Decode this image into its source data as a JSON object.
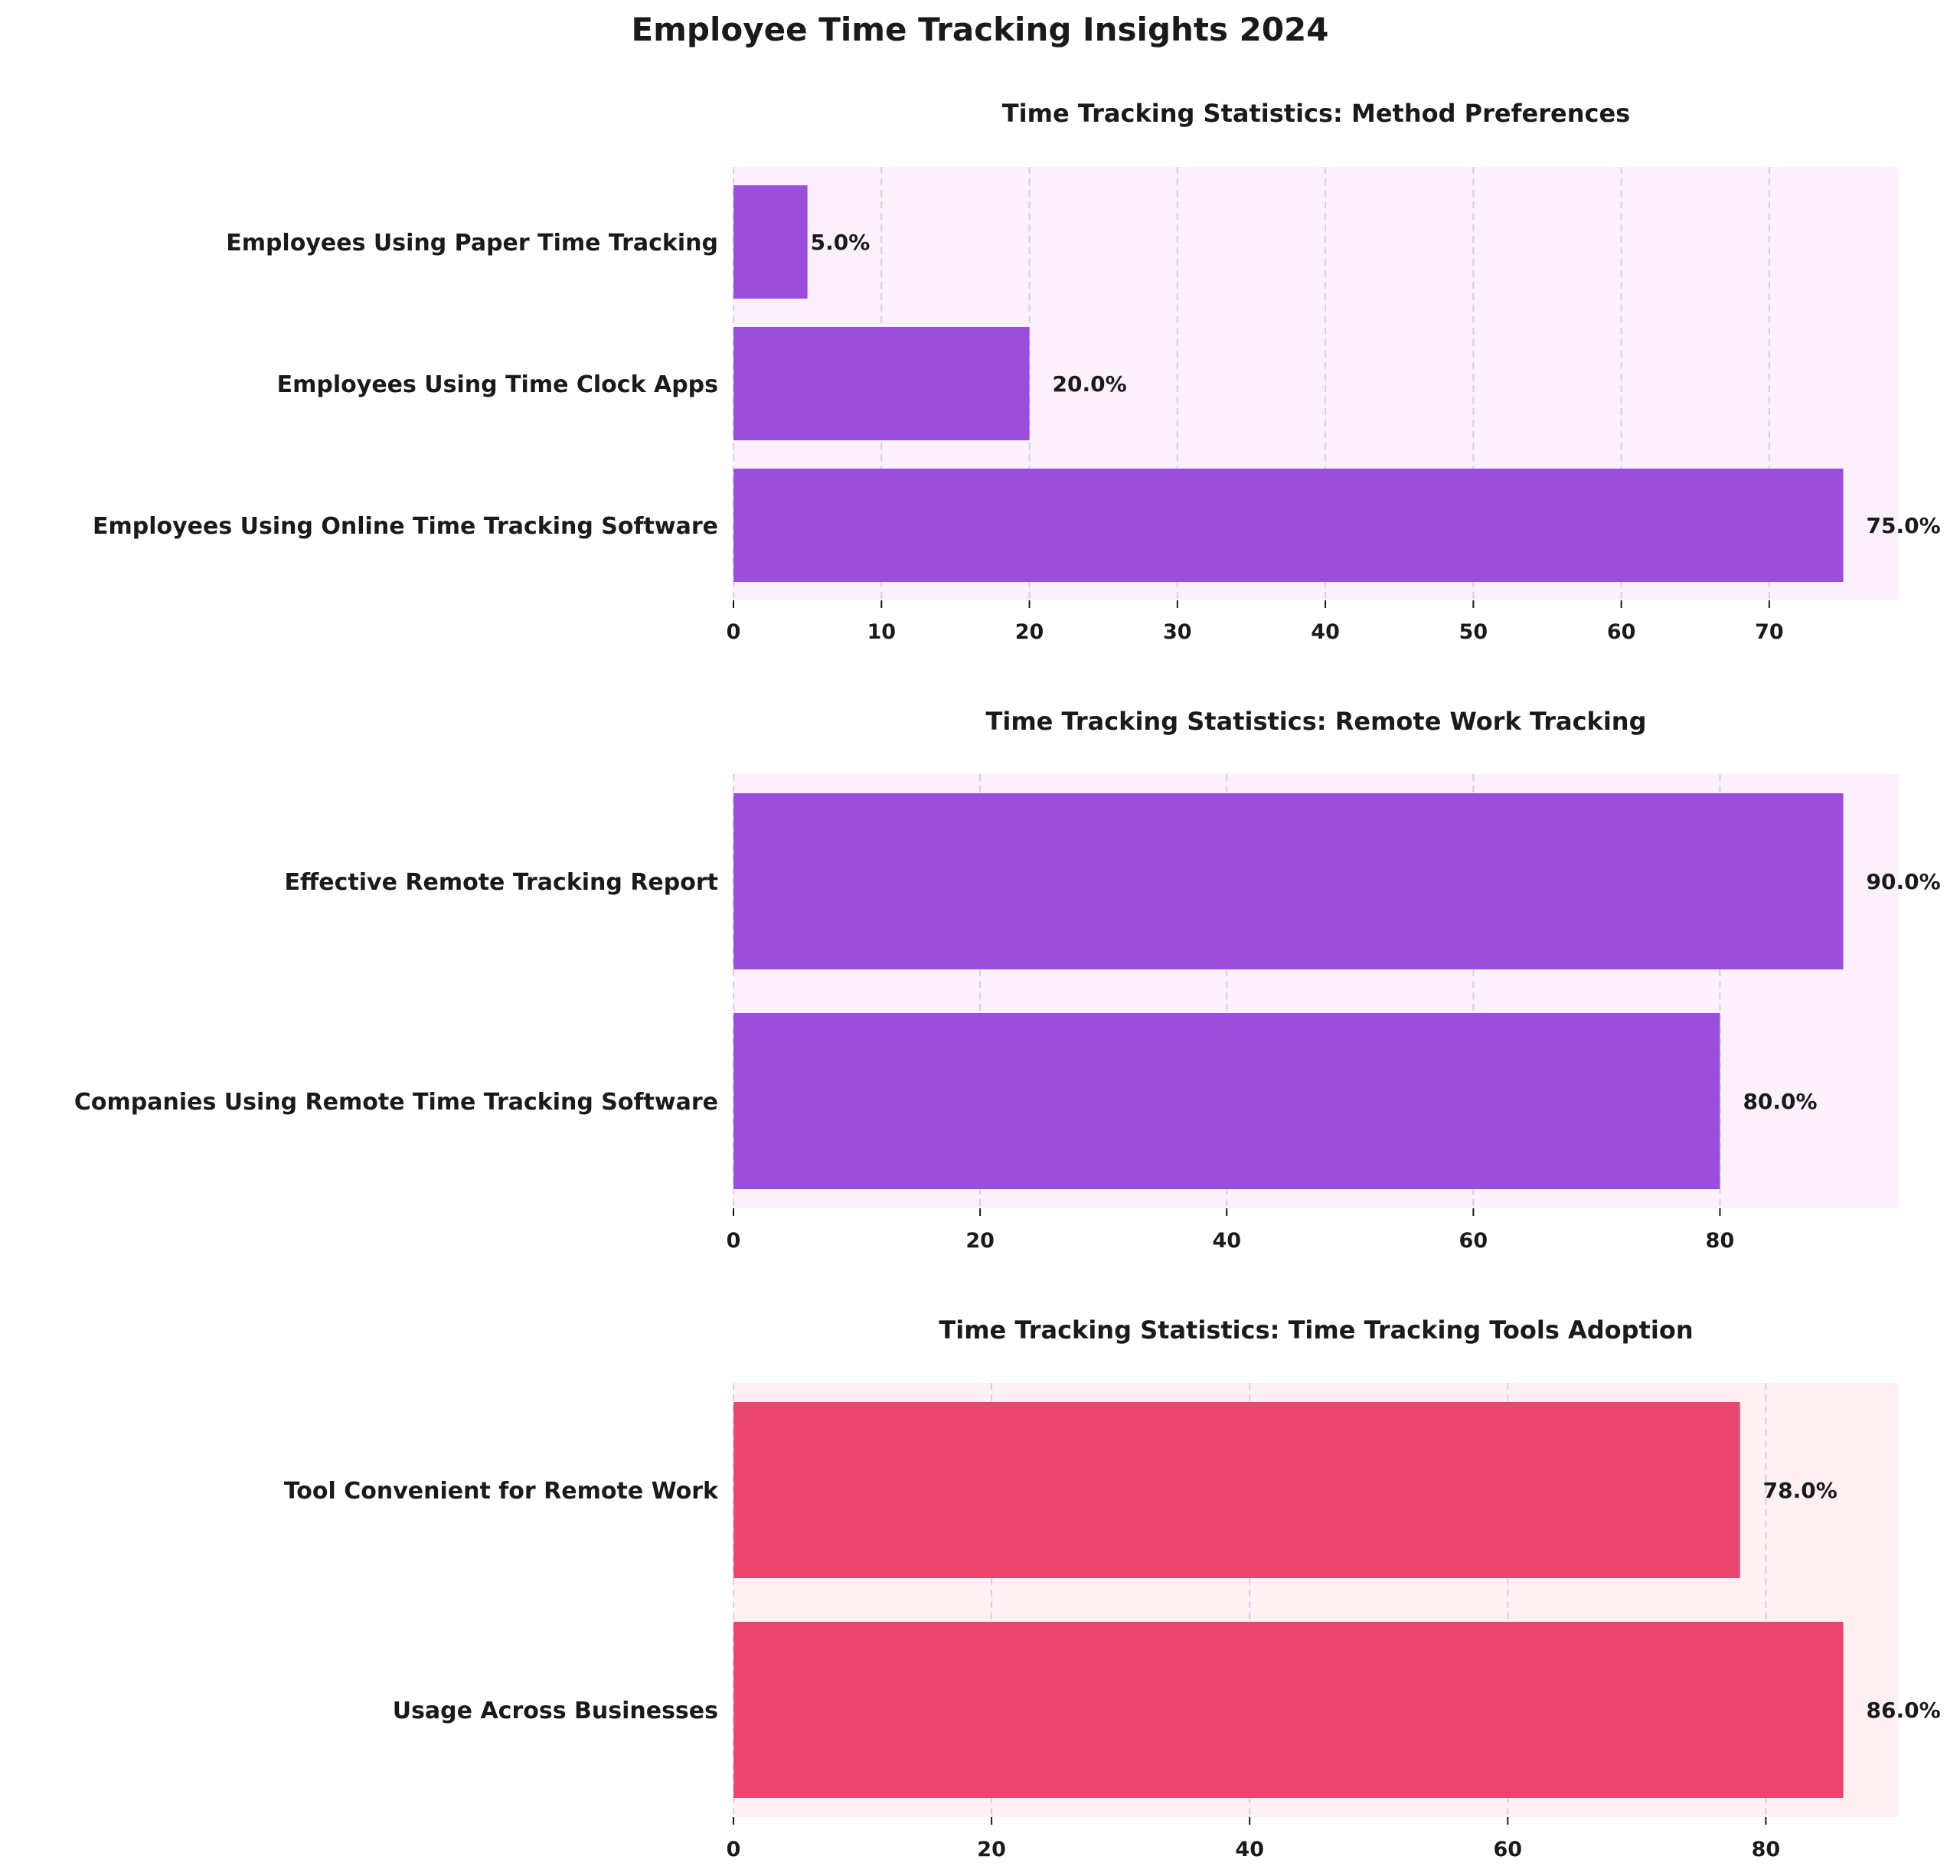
{
  "suptitle": "Employee Time Tracking Insights 2024",
  "colors": {
    "bar_purple": "#9b4ddc",
    "bar_red": "#eb466d",
    "panel_bg_purple": "#fbf0fc",
    "panel_bg_red": "#fff0f3",
    "grid": "#c9c4dc",
    "text": "#1a1a1a"
  },
  "chart_data": [
    {
      "type": "bar",
      "orientation": "horizontal",
      "title": "Time Tracking Statistics: Method Preferences",
      "categories": [
        "Employees Using Paper Time Tracking",
        "Employees Using Time Clock Apps",
        "Employees Using Online Time Tracking Software"
      ],
      "values": [
        5.0,
        20.0,
        75.0
      ],
      "value_labels": [
        "5.0%",
        "20.0%",
        "75.0%"
      ],
      "xlim": [
        0,
        78.75
      ],
      "xticks": [
        0,
        10,
        20,
        30,
        40,
        50,
        60,
        70
      ],
      "grid": "x-dashed",
      "color": "#9b4ddc",
      "background": "#fbf0fc"
    },
    {
      "type": "bar",
      "orientation": "horizontal",
      "title": "Time Tracking Statistics: Remote Work Tracking",
      "categories": [
        "Effective Remote Tracking Report",
        "Companies Using Remote Time Tracking Software"
      ],
      "values": [
        90.0,
        80.0
      ],
      "value_labels": [
        "90.0%",
        "80.0%"
      ],
      "xlim": [
        0,
        94.5
      ],
      "xticks": [
        0,
        20,
        40,
        60,
        80
      ],
      "grid": "x-dashed",
      "color": "#9b4ddc",
      "background": "#fbf0fc"
    },
    {
      "type": "bar",
      "orientation": "horizontal",
      "title": "Time Tracking Statistics: Time Tracking Tools Adoption",
      "categories": [
        "Tool Convenient for Remote Work",
        "Usage Across Businesses"
      ],
      "values": [
        78.0,
        86.0
      ],
      "value_labels": [
        "78.0%",
        "86.0%"
      ],
      "xlim": [
        0,
        90.3
      ],
      "xticks": [
        0,
        20,
        40,
        60,
        80
      ],
      "grid": "x-dashed",
      "color": "#eb466d",
      "background": "#fff0f3"
    }
  ]
}
